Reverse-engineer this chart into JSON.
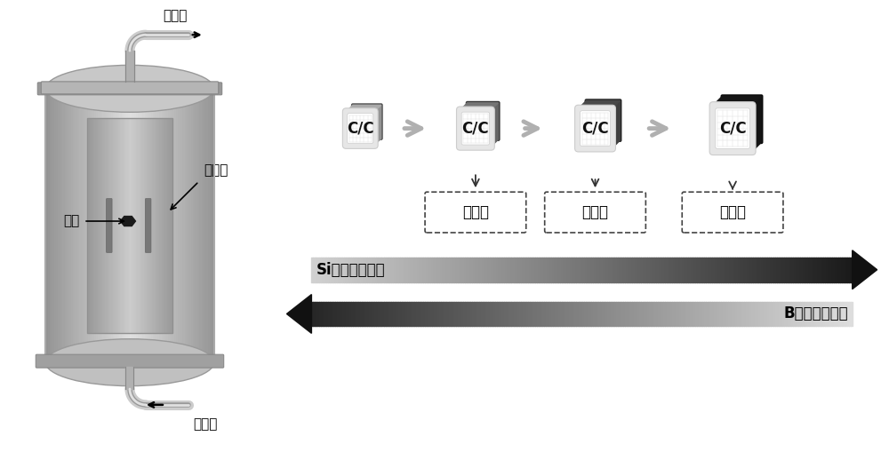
{
  "bg_color": "#ffffff",
  "furnace_label_outlet": "出气口",
  "furnace_label_inlet": "进气口",
  "furnace_label_heater": "发热体",
  "furnace_label_sample": "试样",
  "cube_label": "C/C",
  "phase_labels": [
    "富硷相",
    "过渡相",
    "富硅相"
  ],
  "si_arrow_text": "Si元素含量变化",
  "b_arrow_text": "B元素含量变化",
  "font_size_labels": 11,
  "font_size_cube": 12,
  "font_size_arrows": 11
}
